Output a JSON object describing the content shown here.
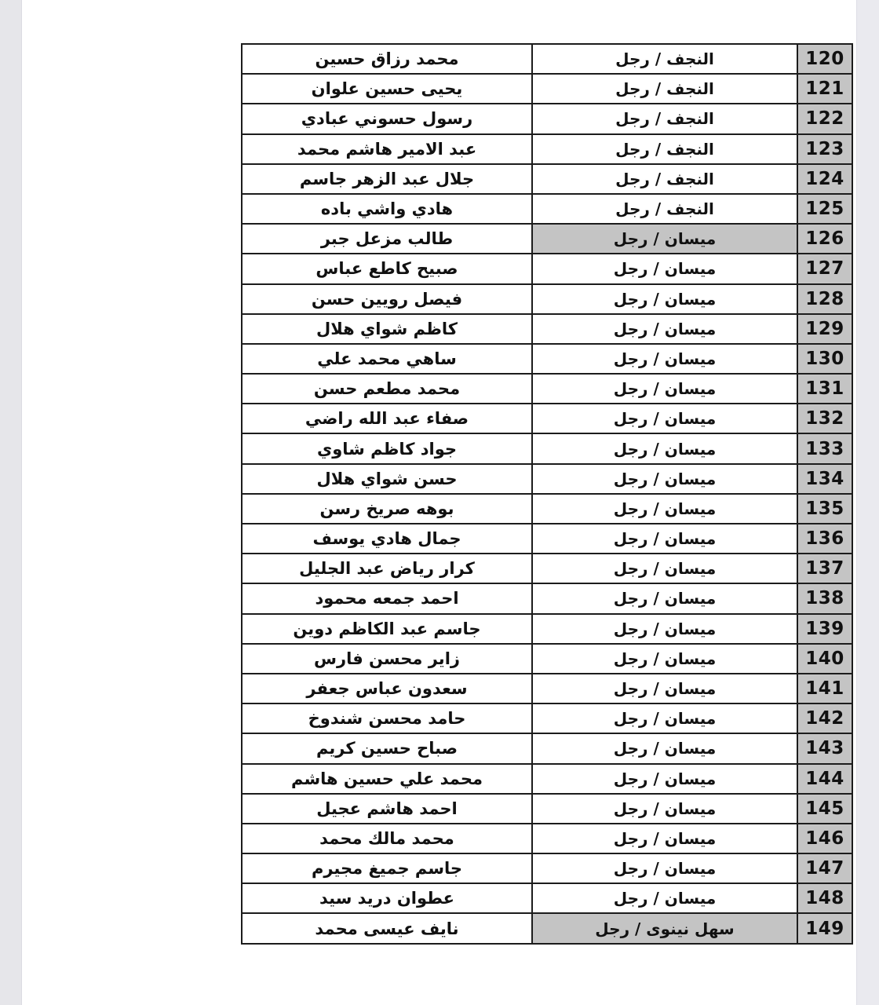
{
  "page": {
    "background_color": "#ffffff",
    "edge_strip_color": "#e9e9ee"
  },
  "table": {
    "direction": "rtl",
    "border_color": "#1c1c1c",
    "number_column_color": "#c4c4c4",
    "highlight_color": "#c4c4c4",
    "rows": [
      {
        "no": "120",
        "origin": "النجف / رجل",
        "name": "محمد رزاق حسين",
        "origin_highlight": false
      },
      {
        "no": "121",
        "origin": "النجف / رجل",
        "name": "يحيى حسين علوان",
        "origin_highlight": false
      },
      {
        "no": "122",
        "origin": "النجف / رجل",
        "name": "رسول حسوني عبادي",
        "origin_highlight": false
      },
      {
        "no": "123",
        "origin": "النجف / رجل",
        "name": "عبد الامير هاشم محمد",
        "origin_highlight": false
      },
      {
        "no": "124",
        "origin": "النجف / رجل",
        "name": "جلال عبد الزهر جاسم",
        "origin_highlight": false
      },
      {
        "no": "125",
        "origin": "النجف / رجل",
        "name": "هادي واشي باده",
        "origin_highlight": false
      },
      {
        "no": "126",
        "origin": "ميسان / رجل",
        "name": "طالب مزعل جبر",
        "origin_highlight": true
      },
      {
        "no": "127",
        "origin": "ميسان / رجل",
        "name": "صبيح كاطع عباس",
        "origin_highlight": false
      },
      {
        "no": "128",
        "origin": "ميسان / رجل",
        "name": "فيصل رويين حسن",
        "origin_highlight": false
      },
      {
        "no": "129",
        "origin": "ميسان / رجل",
        "name": "كاظم شواي هلال",
        "origin_highlight": false
      },
      {
        "no": "130",
        "origin": "ميسان / رجل",
        "name": "ساهي محمد علي",
        "origin_highlight": false
      },
      {
        "no": "131",
        "origin": "ميسان / رجل",
        "name": "محمد مطعم حسن",
        "origin_highlight": false
      },
      {
        "no": "132",
        "origin": "ميسان / رجل",
        "name": "صفاء عبد الله راضي",
        "origin_highlight": false
      },
      {
        "no": "133",
        "origin": "ميسان / رجل",
        "name": "جواد كاظم شاوي",
        "origin_highlight": false
      },
      {
        "no": "134",
        "origin": "ميسان / رجل",
        "name": "حسن شواي هلال",
        "origin_highlight": false
      },
      {
        "no": "135",
        "origin": "ميسان / رجل",
        "name": "بوهه صريخ رسن",
        "origin_highlight": false
      },
      {
        "no": "136",
        "origin": "ميسان / رجل",
        "name": "جمال هادي يوسف",
        "origin_highlight": false
      },
      {
        "no": "137",
        "origin": "ميسان / رجل",
        "name": "كرار رياض عبد الجليل",
        "origin_highlight": false
      },
      {
        "no": "138",
        "origin": "ميسان / رجل",
        "name": "احمد جمعه محمود",
        "origin_highlight": false
      },
      {
        "no": "139",
        "origin": "ميسان / رجل",
        "name": "جاسم عبد الكاظم دوين",
        "origin_highlight": false
      },
      {
        "no": "140",
        "origin": "ميسان / رجل",
        "name": "زاير محسن فارس",
        "origin_highlight": false
      },
      {
        "no": "141",
        "origin": "ميسان / رجل",
        "name": "سعدون عباس جعفر",
        "origin_highlight": false
      },
      {
        "no": "142",
        "origin": "ميسان / رجل",
        "name": "حامد محسن شندوخ",
        "origin_highlight": false
      },
      {
        "no": "143",
        "origin": "ميسان / رجل",
        "name": "صباح حسين كريم",
        "origin_highlight": false
      },
      {
        "no": "144",
        "origin": "ميسان / رجل",
        "name": "محمد علي حسين هاشم",
        "origin_highlight": false
      },
      {
        "no": "145",
        "origin": "ميسان / رجل",
        "name": "احمد هاشم عجيل",
        "origin_highlight": false
      },
      {
        "no": "146",
        "origin": "ميسان / رجل",
        "name": "محمد مالك محمد",
        "origin_highlight": false
      },
      {
        "no": "147",
        "origin": "ميسان / رجل",
        "name": "جاسم جميغ مجيرم",
        "origin_highlight": false
      },
      {
        "no": "148",
        "origin": "ميسان / رجل",
        "name": "عطوان دريد سيد",
        "origin_highlight": false
      },
      {
        "no": "149",
        "origin": "سهل نينوى / رجل",
        "name": "نايف عيسى محمد",
        "origin_highlight": true
      }
    ]
  }
}
